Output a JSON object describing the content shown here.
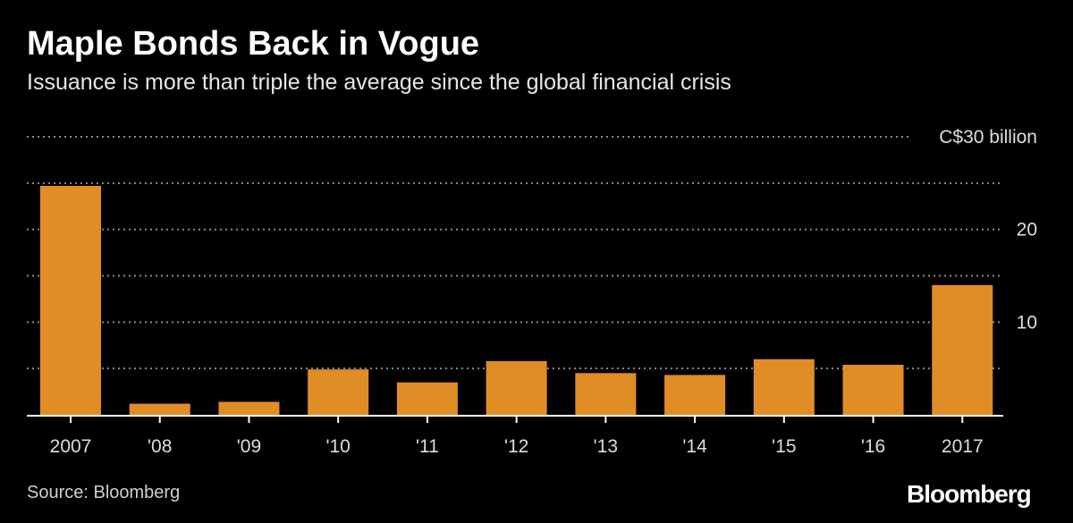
{
  "header": {
    "title": "Maple Bonds Back in Vogue",
    "subtitle": "Issuance is more than triple the average since the global financial crisis"
  },
  "footer": {
    "source": "Source: Bloomberg",
    "brand": "Bloomberg"
  },
  "colors": {
    "background": "#000000",
    "bar": "#e18d26",
    "grid": "#8a8a8a",
    "text": "#ffffff",
    "axis": "#dddddd"
  },
  "chart_data": {
    "type": "bar",
    "title": "Maple Bonds Back in Vogue",
    "subtitle": "Issuance is more than triple the average since the global financial crisis",
    "categories": [
      "2007",
      "'08",
      "'09",
      "'10",
      "'11",
      "'12",
      "'13",
      "'14",
      "'15",
      "'16",
      "2017"
    ],
    "values": [
      24.7,
      1.2,
      1.4,
      4.9,
      3.5,
      5.8,
      4.5,
      4.3,
      6.0,
      5.4,
      14.0
    ],
    "ylim": [
      0,
      30
    ],
    "y_ticks": [
      {
        "value": 5,
        "label": ""
      },
      {
        "value": 10,
        "label": "10"
      },
      {
        "value": 15,
        "label": ""
      },
      {
        "value": 20,
        "label": "20"
      },
      {
        "value": 25,
        "label": ""
      },
      {
        "value": 30,
        "label": "C$30 billion"
      }
    ],
    "y_axis_side": "right",
    "grid": true,
    "grid_style": "dotted",
    "xlabel": "",
    "ylabel": ""
  }
}
